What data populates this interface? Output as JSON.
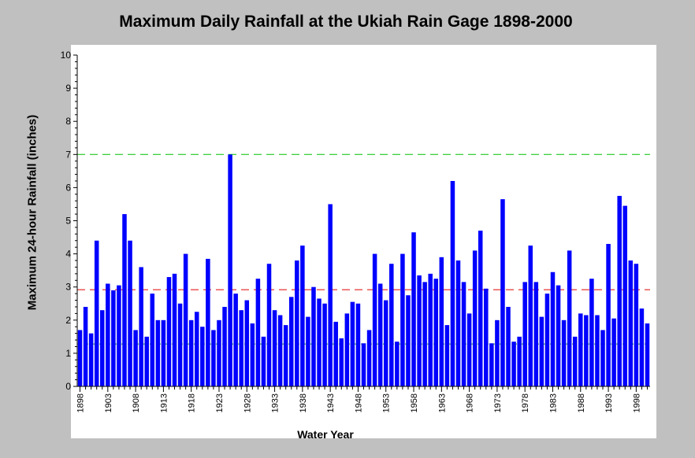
{
  "chart_data": {
    "type": "bar",
    "title": "Maximum Daily Rainfall at the Ukiah Rain Gage 1898-2000",
    "xlabel": "Water Year",
    "ylabel": "Maximum 24-hour Rainfall (inches)",
    "ylim": [
      0,
      10
    ],
    "yticks": [
      "0",
      "1",
      "2",
      "3",
      "4",
      "5",
      "6",
      "7",
      "8",
      "9",
      "10"
    ],
    "xtick_labels": [
      "1898",
      "1903",
      "1908",
      "1913",
      "1918",
      "1923",
      "1928",
      "1933",
      "1938",
      "1943",
      "1948",
      "1953",
      "1958",
      "1963",
      "1968",
      "1973",
      "1978",
      "1983",
      "1988",
      "1993",
      "1998"
    ],
    "x_start": 1898,
    "x_end": 2000,
    "bar_color": "#0000ff",
    "values": [
      1.7,
      2.4,
      1.6,
      4.4,
      2.3,
      3.1,
      2.9,
      3.05,
      5.2,
      4.4,
      1.7,
      3.6,
      1.5,
      2.8,
      2.0,
      2.0,
      3.3,
      3.4,
      2.5,
      4.0,
      2.0,
      2.25,
      1.8,
      3.85,
      1.7,
      2.0,
      2.4,
      7.0,
      2.8,
      2.3,
      2.6,
      1.9,
      3.25,
      1.5,
      3.7,
      2.3,
      2.15,
      1.85,
      2.7,
      3.8,
      4.25,
      2.1,
      3.0,
      2.65,
      2.5,
      5.5,
      1.95,
      1.45,
      2.2,
      2.55,
      2.5,
      1.3,
      1.7,
      4.0,
      3.1,
      2.6,
      3.7,
      1.35,
      4.0,
      2.75,
      4.65,
      3.35,
      3.15,
      3.4,
      3.25,
      3.9,
      1.85,
      6.2,
      3.8,
      3.15,
      2.2,
      4.1,
      4.7,
      2.95,
      1.3,
      2.0,
      5.65,
      2.4,
      1.35,
      1.5,
      3.15,
      4.25,
      3.15,
      2.1,
      2.8,
      3.45,
      3.05,
      2.0,
      4.1,
      1.5,
      2.2,
      2.15,
      3.25,
      2.15,
      1.7,
      4.3,
      2.05,
      5.75,
      5.45,
      3.8,
      3.7,
      2.35,
      1.9
    ],
    "reference_lines": [
      {
        "y": 7.0,
        "color": "#00c000",
        "style": "dashed"
      },
      {
        "y": 2.92,
        "color": "#e00000",
        "style": "dashed"
      },
      {
        "y": 1.28,
        "color": "#00a000",
        "style": "dotted"
      }
    ],
    "grid": false,
    "plot_background": "#ffffff"
  }
}
